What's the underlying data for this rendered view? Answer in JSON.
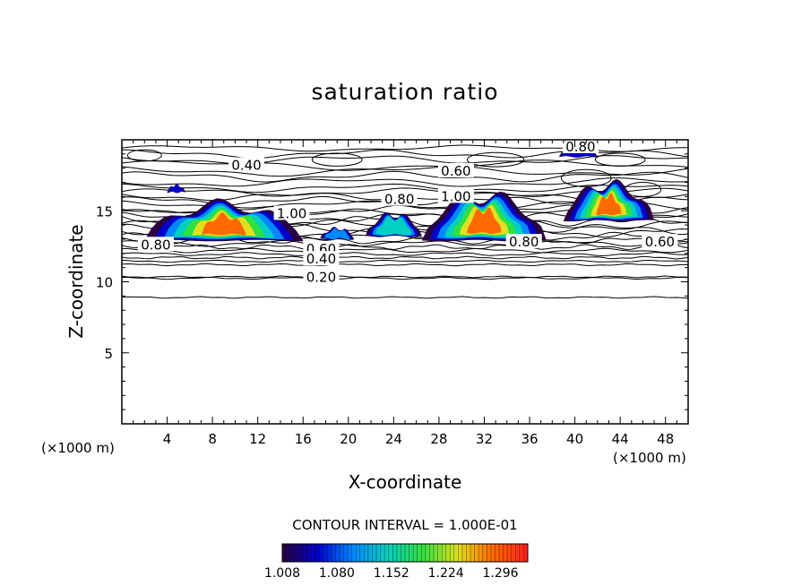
{
  "chart_data": {
    "type": "heatmap",
    "title": "saturation ratio",
    "xlabel": "X-coordinate",
    "ylabel": "Z-coordinate",
    "x_unit": "(×1000 m)",
    "y_unit": "(×1000 m)",
    "xlim": [
      0,
      50
    ],
    "ylim": [
      0,
      20
    ],
    "x_ticks": [
      4,
      8,
      12,
      16,
      20,
      24,
      28,
      32,
      36,
      40,
      44,
      48
    ],
    "y_ticks": [
      5,
      10,
      15
    ],
    "contour_interval_label": "CONTOUR INTERVAL = 1.000E-01",
    "contour_lines": [
      {
        "label": "0.40",
        "x": 11,
        "z": 18.2
      },
      {
        "label": "0.60",
        "x": 29.5,
        "z": 17.8
      },
      {
        "label": "0.80",
        "x": 24.5,
        "z": 15.8
      },
      {
        "label": "1.00",
        "x": 29.5,
        "z": 16.0
      },
      {
        "label": "1.00",
        "x": 15,
        "z": 14.8
      },
      {
        "label": "0.80",
        "x": 3,
        "z": 12.6
      },
      {
        "label": "0.60",
        "x": 17.6,
        "z": 12.3
      },
      {
        "label": "0.40",
        "x": 17.6,
        "z": 11.6
      },
      {
        "label": "0.20",
        "x": 17.6,
        "z": 10.3
      },
      {
        "label": "0.80",
        "x": 35.5,
        "z": 12.8
      },
      {
        "label": "0.60",
        "x": 47.5,
        "z": 12.8
      },
      {
        "label": "0.80",
        "x": 40.5,
        "z": 19.5
      }
    ],
    "supersaturated_regions": [
      {
        "x_range": [
          2,
          16
        ],
        "z_range": [
          12.9,
          15.9
        ],
        "peak": 1.296
      },
      {
        "x_range": [
          17.5,
          20.5
        ],
        "z_range": [
          13.0,
          13.9
        ],
        "peak": 1.08
      },
      {
        "x_range": [
          21.5,
          26.5
        ],
        "z_range": [
          13.2,
          15.0
        ],
        "peak": 1.15
      },
      {
        "x_range": [
          26.5,
          37.5
        ],
        "z_range": [
          12.9,
          16.6
        ],
        "peak": 1.296
      },
      {
        "x_range": [
          39,
          47
        ],
        "z_range": [
          14.3,
          17.3
        ],
        "peak": 1.296
      },
      {
        "x_range": [
          4,
          5.6
        ],
        "z_range": [
          16.3,
          16.9
        ],
        "peak": 1.008
      },
      {
        "x_range": [
          38.6,
          42
        ],
        "z_range": [
          18.8,
          19.6
        ],
        "peak": 1.008
      }
    ],
    "colorbar": {
      "tick_labels": [
        "1.008",
        "1.080",
        "1.152",
        "1.224",
        "1.296"
      ],
      "min": 1.008,
      "max": 1.332,
      "colors": [
        "#2a0040",
        "#0000c8",
        "#0088ff",
        "#00d0c0",
        "#30e040",
        "#e0e020",
        "#ff6a00",
        "#ff2020"
      ]
    },
    "grid": false,
    "legend": "bottom"
  }
}
